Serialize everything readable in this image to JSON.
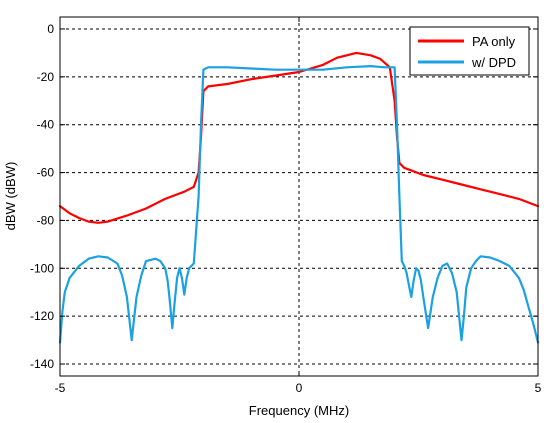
{
  "chart_data": {
    "type": "line",
    "xlabel": "Frequency (MHz)",
    "ylabel": "dBW (dBW)",
    "xlim": [
      -5,
      5
    ],
    "ylim": [
      -145,
      5
    ],
    "x_ticks": [
      -5,
      0,
      5
    ],
    "y_ticks": [
      0,
      -20,
      -40,
      -60,
      -80,
      -100,
      -120,
      -140
    ],
    "x_tick_labels": [
      "-5",
      "0",
      "5"
    ],
    "y_tick_labels": [
      "0",
      "-20",
      "-40",
      "-60",
      "-80",
      "-100",
      "-120",
      "-140"
    ],
    "grid": true,
    "legend_position": "top-right",
    "series": [
      {
        "name": "PA only",
        "color": "#ff0000",
        "x": [
          -5.0,
          -4.8,
          -4.6,
          -4.4,
          -4.2,
          -4.0,
          -3.6,
          -3.2,
          -2.8,
          -2.4,
          -2.2,
          -2.1,
          -2.05,
          -2.0,
          -1.9,
          -1.5,
          -1.0,
          -0.5,
          0.0,
          0.5,
          0.8,
          1.0,
          1.2,
          1.5,
          1.7,
          1.9,
          2.0,
          2.05,
          2.1,
          2.2,
          2.6,
          3.0,
          3.4,
          3.8,
          4.2,
          4.6,
          5.0
        ],
        "y": [
          -74,
          -77,
          -79,
          -80.5,
          -81,
          -80.5,
          -78,
          -75,
          -71,
          -68,
          -66,
          -60,
          -45,
          -26,
          -24,
          -23,
          -21,
          -19.5,
          -18,
          -15,
          -12,
          -11,
          -10,
          -11,
          -12.5,
          -16,
          -30,
          -45,
          -56,
          -58,
          -61,
          -63,
          -65,
          -67,
          -69,
          -71,
          -74
        ]
      },
      {
        "name": "w/ DPD",
        "color": "#1ba1e2",
        "x": [
          -5.0,
          -4.95,
          -4.9,
          -4.8,
          -4.6,
          -4.4,
          -4.2,
          -4.0,
          -3.8,
          -3.7,
          -3.6,
          -3.55,
          -3.5,
          -3.45,
          -3.4,
          -3.3,
          -3.2,
          -3.0,
          -2.9,
          -2.8,
          -2.75,
          -2.7,
          -2.65,
          -2.6,
          -2.55,
          -2.5,
          -2.45,
          -2.4,
          -2.35,
          -2.3,
          -2.25,
          -2.2,
          -2.1,
          -2.05,
          -2.0,
          -1.9,
          -1.5,
          -1.0,
          -0.5,
          0.0,
          0.5,
          1.0,
          1.5,
          1.8,
          1.9,
          2.0,
          2.05,
          2.1,
          2.15,
          2.2,
          2.25,
          2.3,
          2.35,
          2.4,
          2.45,
          2.5,
          2.55,
          2.6,
          2.7,
          2.8,
          2.9,
          3.0,
          3.1,
          3.2,
          3.3,
          3.35,
          3.4,
          3.45,
          3.5,
          3.6,
          3.7,
          3.8,
          4.0,
          4.2,
          4.4,
          4.6,
          4.7,
          4.8,
          4.9,
          5.0
        ],
        "y": [
          -131,
          -118,
          -110,
          -104,
          -99,
          -96,
          -95,
          -95.5,
          -98,
          -103,
          -112,
          -121,
          -130,
          -121,
          -112,
          -103,
          -97,
          -96,
          -97,
          -100,
          -105,
          -114,
          -125,
          -114,
          -104,
          -100,
          -104,
          -111,
          -104,
          -100,
          -99,
          -98,
          -70,
          -40,
          -17,
          -16,
          -16,
          -16.5,
          -17,
          -17,
          -17,
          -16,
          -15.5,
          -16,
          -16,
          -16,
          -40,
          -70,
          -97,
          -99,
          -102,
          -107,
          -112,
          -105,
          -100,
          -101,
          -105,
          -112,
          -125,
          -112,
          -104,
          -99,
          -98,
          -102,
          -110,
          -120,
          -130,
          -120,
          -108,
          -100,
          -97,
          -95,
          -95.5,
          -97,
          -99,
          -104,
          -109,
          -116,
          -123,
          -131
        ]
      }
    ]
  }
}
